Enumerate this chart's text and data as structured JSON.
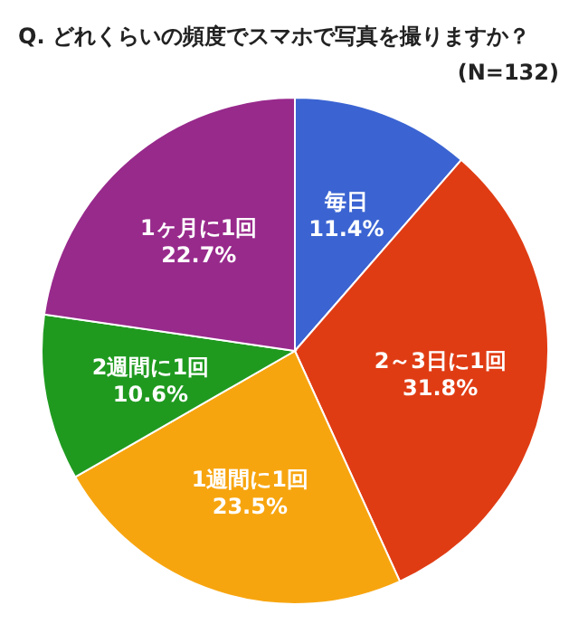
{
  "chart_data": {
    "type": "pie",
    "title": "Q. どれくらいの頻度でスマホで写真を撮りますか？",
    "subtitle": "(N=132)",
    "categories": [
      "毎日",
      "2～3日に1回",
      "1週間に1回",
      "2週間に1回",
      "1ヶ月に1回"
    ],
    "values": [
      11.4,
      31.8,
      23.5,
      10.6,
      22.7
    ],
    "value_labels": [
      "11.4%",
      "31.8%",
      "23.5%",
      "10.6%",
      "22.7%"
    ],
    "colors": [
      "#3b64d2",
      "#e03c14",
      "#f7a50f",
      "#1f9a1f",
      "#982a8c"
    ]
  }
}
